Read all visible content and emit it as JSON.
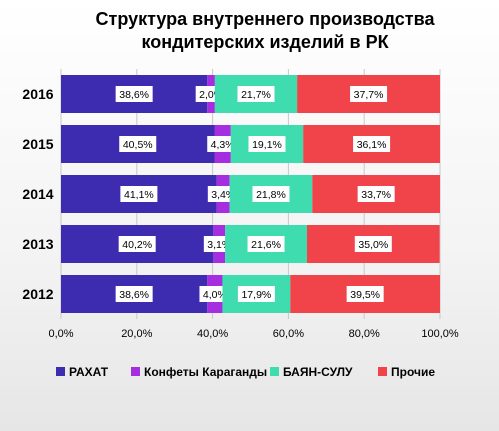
{
  "chart_data": {
    "type": "bar",
    "orientation": "horizontal",
    "stacked": true,
    "title": "Структура внутреннего производства\nкондитерских изделий в РК",
    "categories": [
      "2016",
      "2015",
      "2014",
      "2013",
      "2012"
    ],
    "series": [
      {
        "name": "РАХАТ",
        "color": "#3d2bb0",
        "values": [
          38.6,
          40.5,
          41.1,
          40.2,
          38.6
        ],
        "labels": [
          "38,6%",
          "40,5%",
          "41,1%",
          "40,2%",
          "38,6%"
        ]
      },
      {
        "name": "Конфеты Караганды",
        "color": "#a52fe0",
        "values": [
          2.0,
          4.3,
          3.4,
          3.1,
          4.0
        ],
        "labels": [
          "2,0%",
          "4,3%",
          "3,4%",
          "3,1%",
          "4,0%"
        ]
      },
      {
        "name": "БАЯН-СУЛУ",
        "color": "#3fdcb0",
        "values": [
          21.7,
          19.1,
          21.8,
          21.6,
          17.9
        ],
        "labels": [
          "21,7%",
          "19,1%",
          "21,8%",
          "21,6%",
          "17,9%"
        ]
      },
      {
        "name": "Прочие",
        "color": "#f0444a",
        "values": [
          37.7,
          36.1,
          33.7,
          35.0,
          39.5
        ],
        "labels": [
          "37,7%",
          "36,1%",
          "33,7%",
          "35,0%",
          "39,5%"
        ]
      }
    ],
    "xlim": [
      0,
      100
    ],
    "xticks": [
      "0,0%",
      "20,0%",
      "40,0%",
      "60,0%",
      "80,0%",
      "100,0%"
    ],
    "grid": true,
    "legend": "bottom"
  }
}
